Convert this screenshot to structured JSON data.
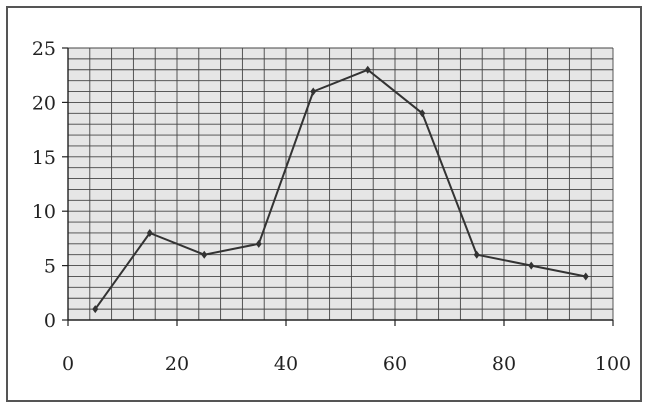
{
  "chart_data": {
    "type": "line",
    "title": "",
    "xlabel": "",
    "ylabel": "",
    "xlim": [
      0,
      100
    ],
    "ylim": [
      0,
      25
    ],
    "x_ticks": [
      0,
      20,
      40,
      60,
      80,
      100
    ],
    "y_ticks": [
      0,
      5,
      10,
      15,
      20,
      25
    ],
    "x_tick_labels": [
      "0",
      "20",
      "40",
      "60",
      "80",
      "100"
    ],
    "y_tick_labels": [
      "0",
      "5",
      "10",
      "15",
      "20",
      "25"
    ],
    "grid": true,
    "grid_minor": {
      "x_step": 4,
      "y_step": 1
    },
    "legend": "none",
    "series": [
      {
        "x": [
          5,
          15,
          25,
          35,
          45,
          55,
          65,
          75,
          85,
          95
        ],
        "y": [
          1,
          8,
          6,
          7,
          21,
          23,
          19,
          6,
          5,
          4
        ]
      }
    ],
    "colors": {
      "plot_bg": "#e6e6e6",
      "grid": "#444444",
      "line": "#333333"
    }
  }
}
